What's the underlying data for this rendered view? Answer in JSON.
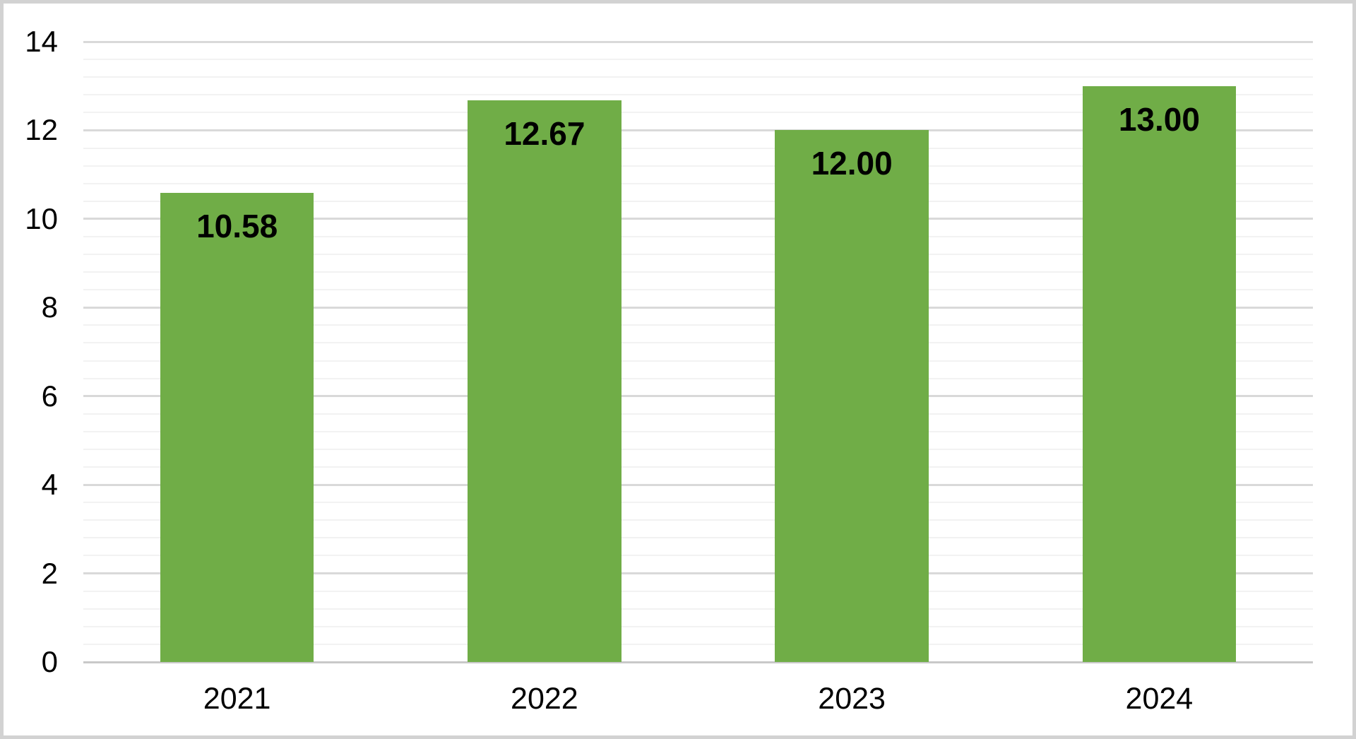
{
  "chart_data": {
    "type": "bar",
    "title": "",
    "xlabel": "",
    "ylabel": "",
    "categories": [
      "2021",
      "2022",
      "2023",
      "2024"
    ],
    "values": [
      10.58,
      12.67,
      12.0,
      13.0
    ],
    "data_labels": [
      "10.58",
      "12.67",
      "12.00",
      "13.00"
    ],
    "y_tick_labels": [
      "0",
      "2",
      "4",
      "6",
      "8",
      "10",
      "12",
      "14"
    ],
    "ylim": [
      0,
      14
    ],
    "y_major_unit": 2,
    "y_minor_unit": 0.4,
    "legend": "none",
    "grid": "horizontal major and minor gridlines",
    "label_position": "inside-end",
    "colors": {
      "bar_fill": "#70AD47",
      "major_gridline": "#d9d9d9",
      "minor_gridline": "#f2f2f2",
      "axis_line": "#c9c9c9",
      "text": "#000000",
      "frame_border": "#d2d2d2",
      "background": "#ffffff"
    }
  }
}
